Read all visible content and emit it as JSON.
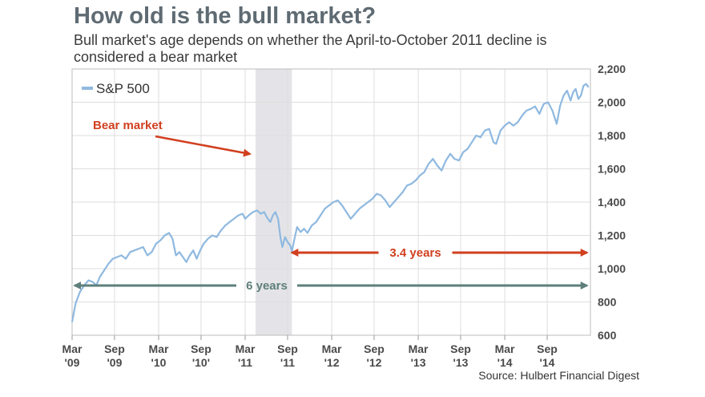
{
  "header": {
    "title": "How old is the bull market?",
    "subtitle": "Bull market's age depends on whether the April-to-October 2011 decline is considered a bear market",
    "source": "Source: Hulbert Financial Digest"
  },
  "colors": {
    "line": "#8fb9e0",
    "shade": "#e4e4e8",
    "red": "#d13f1f",
    "teal": "#5e7f7b",
    "grid": "#dedede"
  },
  "chart_data": {
    "type": "line",
    "title": "How old is the bull market?",
    "xlabel": "",
    "ylabel": "",
    "ylim": [
      600,
      2200
    ],
    "xlim": [
      2009.18,
      2015.17
    ],
    "yticks": [
      600,
      800,
      1000,
      1200,
      1400,
      1600,
      1800,
      2000,
      2200
    ],
    "ytick_labels": [
      "600",
      "800",
      "1,000",
      "1,200",
      "1,400",
      "1,600",
      "1,800",
      "2,000",
      "2,200"
    ],
    "xticks": [
      {
        "t": 2009.18,
        "l1": "Mar",
        "l2": "'09"
      },
      {
        "t": 2009.67,
        "l1": "Sep",
        "l2": "'09"
      },
      {
        "t": 2010.18,
        "l1": "Mar",
        "l2": "'10"
      },
      {
        "t": 2010.67,
        "l1": "Sep",
        "l2": "'10'"
      },
      {
        "t": 2011.18,
        "l1": "Mar",
        "l2": "'11"
      },
      {
        "t": 2011.67,
        "l1": "Sep",
        "l2": "'11"
      },
      {
        "t": 2012.18,
        "l1": "Mar",
        "l2": "'12"
      },
      {
        "t": 2012.67,
        "l1": "Sep",
        "l2": "'12"
      },
      {
        "t": 2013.18,
        "l1": "Mar",
        "l2": "'13"
      },
      {
        "t": 2013.67,
        "l1": "Sep",
        "l2": "'13"
      },
      {
        "t": 2014.18,
        "l1": "Mar",
        "l2": "'14"
      },
      {
        "t": 2014.67,
        "l1": "Sep",
        "l2": "'14"
      }
    ],
    "legend": "S&P 500",
    "legend_position": "top-left",
    "grid": true,
    "shaded_period": {
      "label": "Bear market",
      "start": 2011.3,
      "end": 2011.72
    },
    "annotations": [
      {
        "label": "3.4 years",
        "start": 2011.72,
        "end": 2015.13
      },
      {
        "label": "6 years",
        "start": 2009.21,
        "end": 2015.13
      }
    ],
    "series": [
      {
        "name": "S&P 500",
        "points": [
          [
            2009.18,
            680
          ],
          [
            2009.22,
            790
          ],
          [
            2009.27,
            860
          ],
          [
            2009.32,
            900
          ],
          [
            2009.37,
            930
          ],
          [
            2009.42,
            920
          ],
          [
            2009.46,
            900
          ],
          [
            2009.5,
            950
          ],
          [
            2009.55,
            990
          ],
          [
            2009.6,
            1030
          ],
          [
            2009.65,
            1060
          ],
          [
            2009.7,
            1070
          ],
          [
            2009.75,
            1080
          ],
          [
            2009.8,
            1060
          ],
          [
            2009.85,
            1100
          ],
          [
            2009.9,
            1110
          ],
          [
            2009.95,
            1120
          ],
          [
            2010.0,
            1130
          ],
          [
            2010.05,
            1080
          ],
          [
            2010.1,
            1100
          ],
          [
            2010.15,
            1150
          ],
          [
            2010.2,
            1170
          ],
          [
            2010.25,
            1200
          ],
          [
            2010.3,
            1215
          ],
          [
            2010.34,
            1180
          ],
          [
            2010.38,
            1080
          ],
          [
            2010.42,
            1100
          ],
          [
            2010.46,
            1070
          ],
          [
            2010.5,
            1040
          ],
          [
            2010.54,
            1080
          ],
          [
            2010.58,
            1110
          ],
          [
            2010.62,
            1060
          ],
          [
            2010.66,
            1110
          ],
          [
            2010.7,
            1150
          ],
          [
            2010.75,
            1180
          ],
          [
            2010.8,
            1200
          ],
          [
            2010.85,
            1190
          ],
          [
            2010.9,
            1230
          ],
          [
            2010.95,
            1260
          ],
          [
            2011.0,
            1280
          ],
          [
            2011.05,
            1300
          ],
          [
            2011.1,
            1320
          ],
          [
            2011.15,
            1330
          ],
          [
            2011.18,
            1300
          ],
          [
            2011.22,
            1320
          ],
          [
            2011.27,
            1340
          ],
          [
            2011.32,
            1350
          ],
          [
            2011.36,
            1330
          ],
          [
            2011.4,
            1340
          ],
          [
            2011.43,
            1310
          ],
          [
            2011.47,
            1280
          ],
          [
            2011.5,
            1320
          ],
          [
            2011.53,
            1340
          ],
          [
            2011.56,
            1300
          ],
          [
            2011.59,
            1180
          ],
          [
            2011.61,
            1130
          ],
          [
            2011.64,
            1190
          ],
          [
            2011.67,
            1160
          ],
          [
            2011.7,
            1140
          ],
          [
            2011.72,
            1105
          ],
          [
            2011.75,
            1180
          ],
          [
            2011.78,
            1250
          ],
          [
            2011.82,
            1220
          ],
          [
            2011.86,
            1240
          ],
          [
            2011.9,
            1215
          ],
          [
            2011.95,
            1260
          ],
          [
            2012.0,
            1280
          ],
          [
            2012.05,
            1320
          ],
          [
            2012.1,
            1360
          ],
          [
            2012.15,
            1380
          ],
          [
            2012.2,
            1400
          ],
          [
            2012.25,
            1410
          ],
          [
            2012.3,
            1380
          ],
          [
            2012.35,
            1340
          ],
          [
            2012.4,
            1300
          ],
          [
            2012.45,
            1330
          ],
          [
            2012.5,
            1360
          ],
          [
            2012.55,
            1380
          ],
          [
            2012.6,
            1400
          ],
          [
            2012.65,
            1420
          ],
          [
            2012.7,
            1450
          ],
          [
            2012.75,
            1440
          ],
          [
            2012.8,
            1410
          ],
          [
            2012.85,
            1370
          ],
          [
            2012.9,
            1400
          ],
          [
            2012.95,
            1430
          ],
          [
            2013.0,
            1460
          ],
          [
            2013.05,
            1500
          ],
          [
            2013.1,
            1510
          ],
          [
            2013.15,
            1530
          ],
          [
            2013.2,
            1560
          ],
          [
            2013.25,
            1580
          ],
          [
            2013.3,
            1630
          ],
          [
            2013.35,
            1660
          ],
          [
            2013.4,
            1620
          ],
          [
            2013.45,
            1590
          ],
          [
            2013.5,
            1650
          ],
          [
            2013.55,
            1690
          ],
          [
            2013.6,
            1660
          ],
          [
            2013.65,
            1650
          ],
          [
            2013.7,
            1700
          ],
          [
            2013.75,
            1720
          ],
          [
            2013.8,
            1760
          ],
          [
            2013.85,
            1800
          ],
          [
            2013.9,
            1790
          ],
          [
            2013.95,
            1830
          ],
          [
            2014.0,
            1840
          ],
          [
            2014.05,
            1760
          ],
          [
            2014.08,
            1750
          ],
          [
            2014.13,
            1830
          ],
          [
            2014.18,
            1860
          ],
          [
            2014.23,
            1880
          ],
          [
            2014.28,
            1860
          ],
          [
            2014.33,
            1880
          ],
          [
            2014.38,
            1920
          ],
          [
            2014.43,
            1950
          ],
          [
            2014.48,
            1960
          ],
          [
            2014.53,
            1975
          ],
          [
            2014.58,
            1930
          ],
          [
            2014.63,
            1990
          ],
          [
            2014.68,
            2000
          ],
          [
            2014.73,
            1950
          ],
          [
            2014.78,
            1870
          ],
          [
            2014.82,
            1980
          ],
          [
            2014.86,
            2040
          ],
          [
            2014.9,
            2070
          ],
          [
            2014.94,
            2010
          ],
          [
            2014.97,
            2060
          ],
          [
            2015.0,
            2080
          ],
          [
            2015.03,
            2020
          ],
          [
            2015.06,
            2040
          ],
          [
            2015.09,
            2100
          ],
          [
            2015.12,
            2110
          ],
          [
            2015.15,
            2090
          ]
        ]
      }
    ]
  }
}
